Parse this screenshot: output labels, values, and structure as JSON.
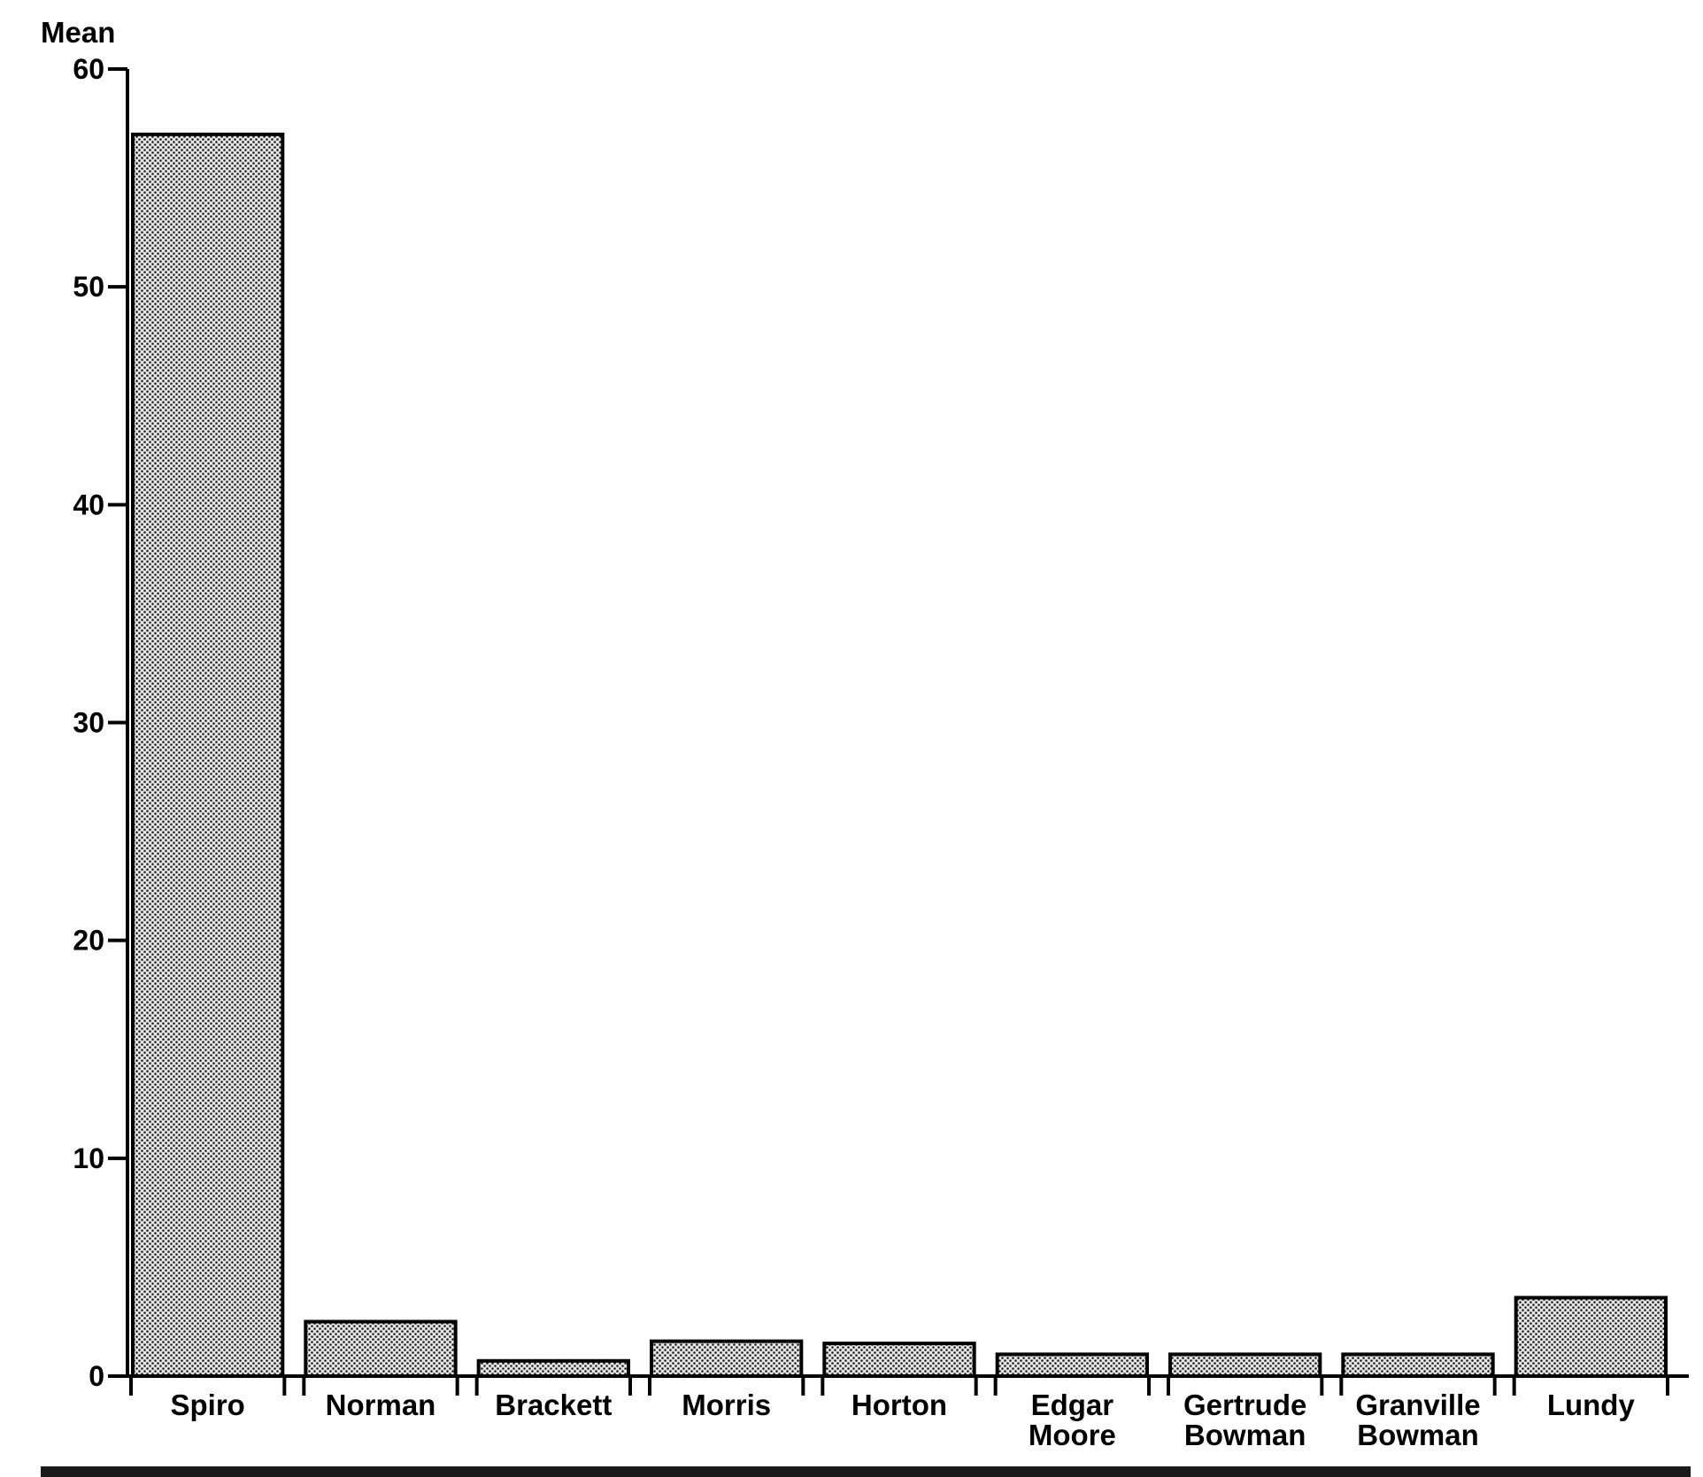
{
  "chart_data": {
    "type": "bar",
    "title": "",
    "xlabel": "",
    "ylabel": "Mean",
    "ylim": [
      0,
      60
    ],
    "yticks": [
      0,
      10,
      20,
      30,
      40,
      50,
      60
    ],
    "grid": false,
    "legend": "none",
    "bar_fill": "#b8b8b8",
    "bar_stroke": "#000000",
    "categories": [
      [
        "Spiro"
      ],
      [
        "Norman"
      ],
      [
        "Brackett"
      ],
      [
        "Morris"
      ],
      [
        "Horton"
      ],
      [
        "Edgar",
        "Moore"
      ],
      [
        "Gertrude",
        "Bowman"
      ],
      [
        "Granville",
        "Bowman"
      ],
      [
        "Lundy"
      ]
    ],
    "values": [
      57,
      2.5,
      0.7,
      1.6,
      1.5,
      1.0,
      1.0,
      1.0,
      3.6
    ]
  }
}
